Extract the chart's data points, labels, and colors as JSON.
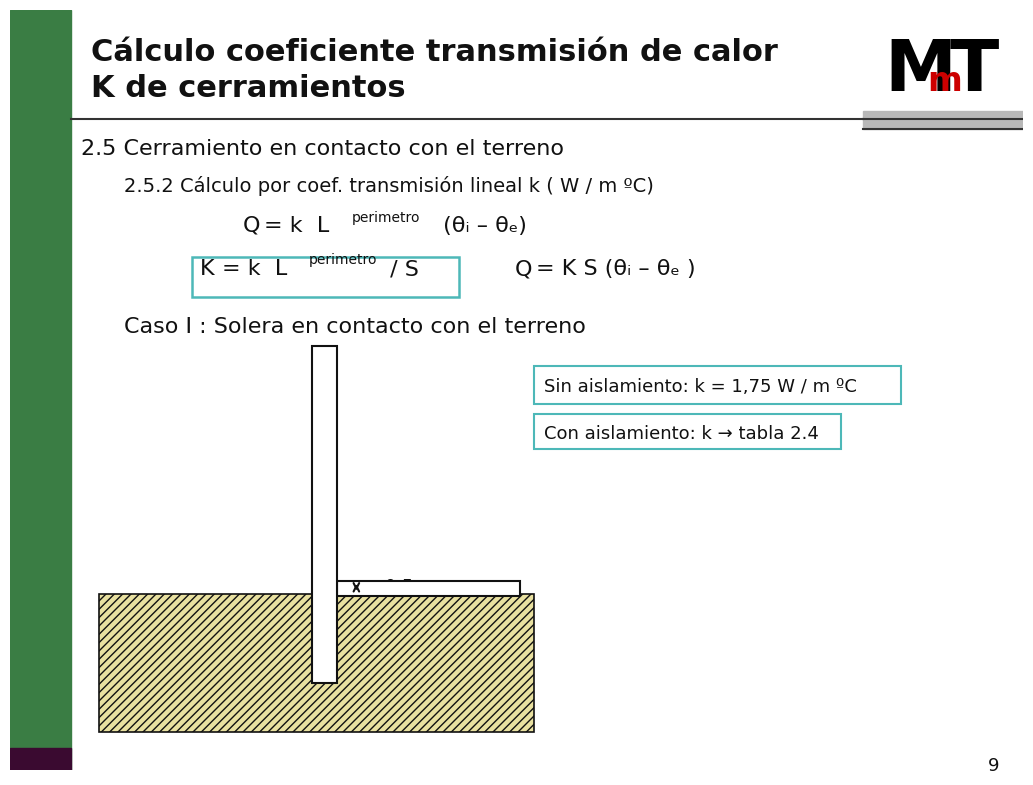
{
  "title_line1": "Cálculo coeficiente transmisión de calor",
  "title_line2": "K de cerramientos",
  "section": "2.5 Cerramiento en contacto con el terreno",
  "subsection": "2.5.2 Cálculo por coef. transmisión lineal k ( W / m ºC)",
  "caso": "Caso I : Solera en contacto con el terreno",
  "box1": "Sin aislamiento: k = 1,75 W / m ºC",
  "box2": "Con aislamiento: k → tabla 2.4",
  "dim_label": "≤ 0,5 m",
  "page_num": "9",
  "bg_color": "#ffffff",
  "left_bar_color": "#3a7d44",
  "title_color": "#111111",
  "text_color": "#111111",
  "box_border_color": "#4db8b8",
  "line_color": "#111111",
  "header_line_color": "#333333",
  "grey_rect_color": "#b8b8b8",
  "hatch_fill": "#e8e0a0"
}
